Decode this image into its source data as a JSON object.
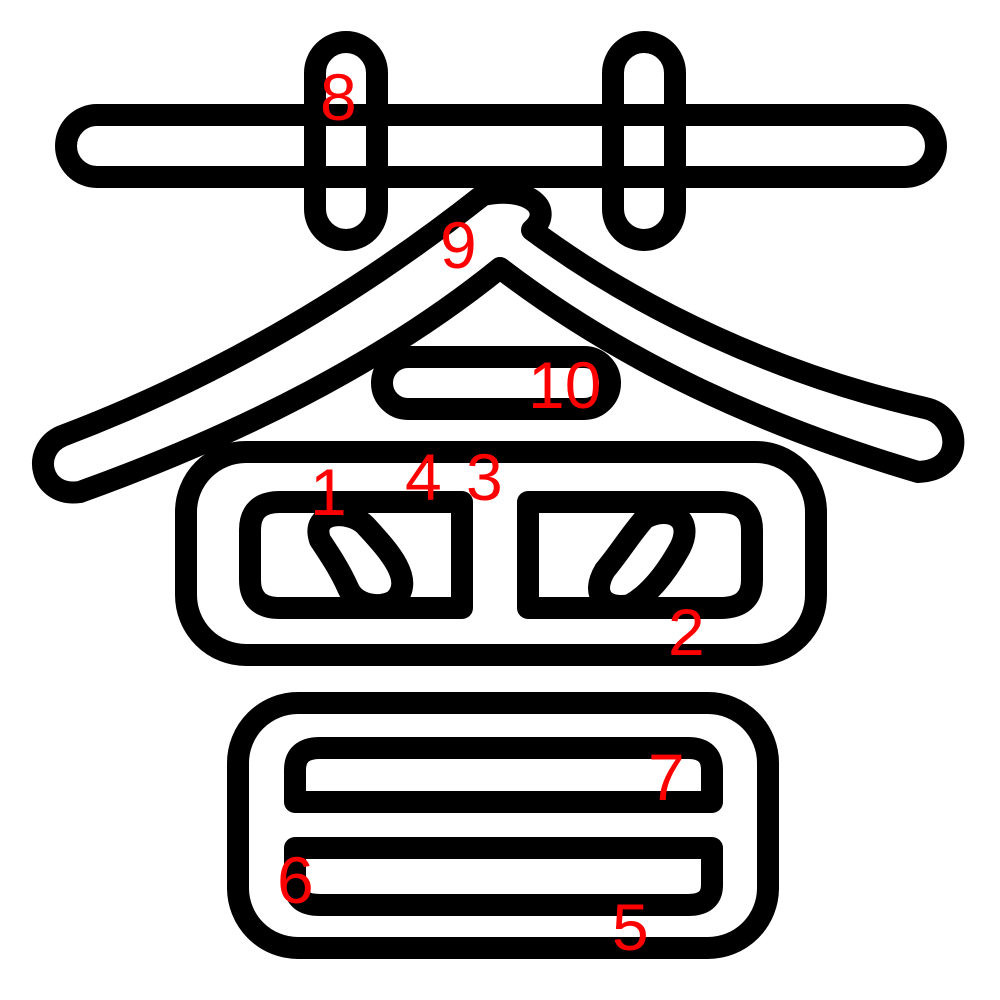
{
  "colors": {
    "outline": "#000000",
    "label": "#ff0000",
    "background": "#ffffff"
  },
  "stroke_labels": [
    "1",
    "2",
    "3",
    "4",
    "5",
    "6",
    "7",
    "8",
    "9",
    "10"
  ]
}
